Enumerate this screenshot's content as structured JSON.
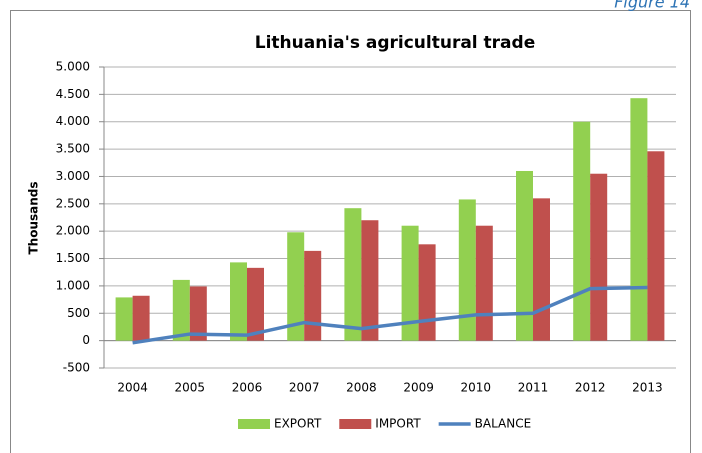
{
  "figure_label": "Figure 14",
  "chart_data": {
    "type": "bar_line",
    "title": "Lithuania's agricultural trade",
    "y_label": "Thousands",
    "categories": [
      "2004",
      "2005",
      "2006",
      "2007",
      "2008",
      "2009",
      "2010",
      "2011",
      "2012",
      "2013"
    ],
    "series": [
      {
        "name": "EXPORT",
        "type": "bar",
        "color": "#92d050",
        "values": [
          790,
          1110,
          1430,
          1980,
          2420,
          2100,
          2580,
          3100,
          4000,
          4430
        ]
      },
      {
        "name": "IMPORT",
        "type": "bar",
        "color": "#c0504d",
        "values": [
          820,
          990,
          1330,
          1640,
          2200,
          1760,
          2100,
          2600,
          3050,
          3460
        ]
      },
      {
        "name": "BALANCE",
        "type": "line",
        "color": "#4f81bd",
        "values": [
          -40,
          120,
          100,
          330,
          220,
          350,
          470,
          500,
          950,
          970
        ]
      }
    ],
    "ylim": [
      -500,
      5000
    ],
    "yticks": [
      {
        "value": 5000,
        "label": "5.000"
      },
      {
        "value": 4500,
        "label": "4.500"
      },
      {
        "value": 4000,
        "label": "4.000"
      },
      {
        "value": 3500,
        "label": "3.500"
      },
      {
        "value": 3000,
        "label": "3.000"
      },
      {
        "value": 2500,
        "label": "2.500"
      },
      {
        "value": 2000,
        "label": "2.000"
      },
      {
        "value": 1500,
        "label": "1.500"
      },
      {
        "value": 1000,
        "label": "1.000"
      },
      500,
      0,
      -500
    ],
    "grid": true,
    "legend": "bottom"
  }
}
